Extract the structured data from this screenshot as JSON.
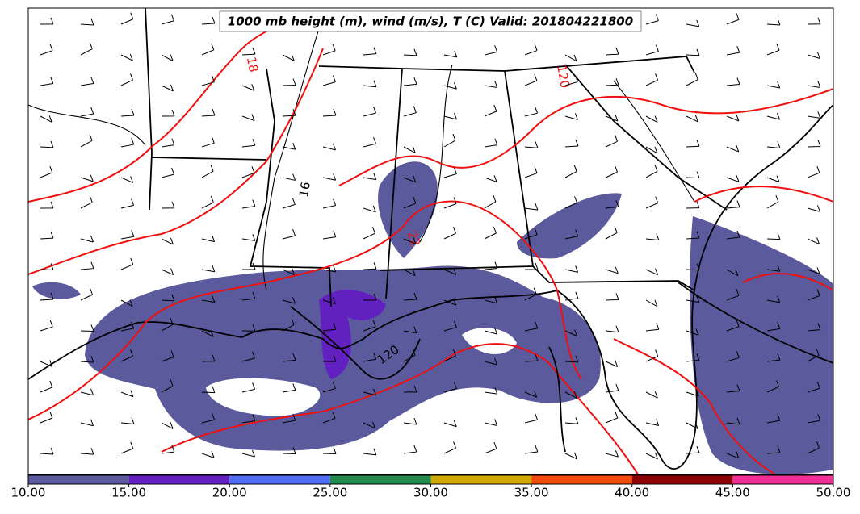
{
  "title": "1000 mb height (m), wind (m/s), T (C) Valid: 201804221800",
  "contour_labels": [
    "18",
    "16",
    "22",
    "120",
    "120"
  ],
  "colorbar": {
    "ticks": [
      {
        "value": 10,
        "label": "10.00"
      },
      {
        "value": 15,
        "label": "15.00"
      },
      {
        "value": 20,
        "label": "20.00"
      },
      {
        "value": 25,
        "label": "25.00"
      },
      {
        "value": 30,
        "label": "30.00"
      },
      {
        "value": 35,
        "label": "35.00"
      },
      {
        "value": 40,
        "label": "40.00"
      },
      {
        "value": 45,
        "label": "45.00"
      },
      {
        "value": 50,
        "label": "50.00"
      }
    ],
    "colors": [
      "#5a5a9c",
      "#6220c0",
      "#4f6cf2",
      "#238a4e",
      "#cfa800",
      "#f04a0c",
      "#8c0008",
      "#ee2f95"
    ]
  }
}
